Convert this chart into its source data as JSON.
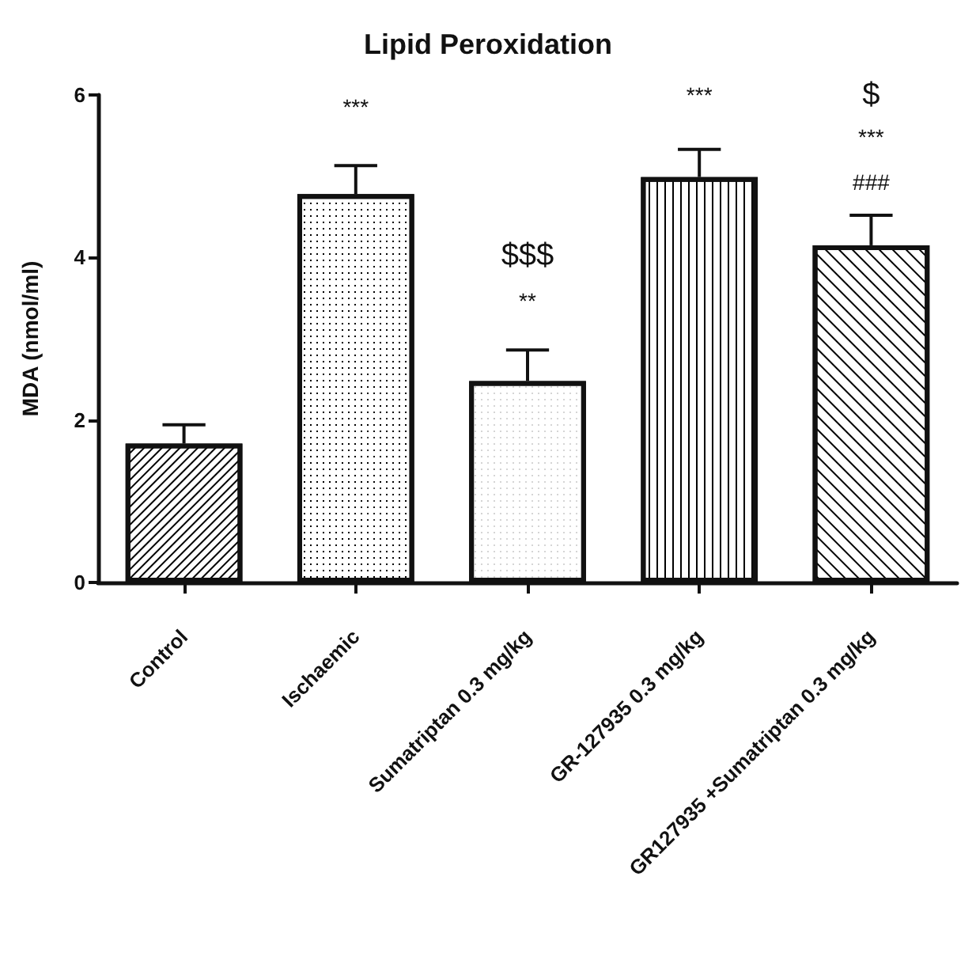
{
  "chart_data": {
    "type": "bar",
    "title": "Lipid Peroxidation",
    "ylabel": "MDA (nmol/ml)",
    "categories": [
      "Control",
      "Ischaemic",
      "Sumatriptan 0.3 mg/kg",
      "GR-127935 0.3 mg/kg",
      "GR127935 +Sumatriptan 0.3 mg/kg"
    ],
    "values": [
      1.71,
      4.78,
      2.48,
      4.99,
      4.15
    ],
    "errors": [
      0.23,
      0.35,
      0.38,
      0.34,
      0.37
    ],
    "colors": [
      "#ffffff",
      "#ffffff",
      "#ffffff",
      "#ffffff",
      "#ffffff"
    ],
    "ylim": [
      0,
      6
    ],
    "yticks": [
      0,
      2,
      4,
      6
    ],
    "grid": false,
    "annotations": [
      "***",
      "**",
      "$$$",
      "***",
      "###",
      "***",
      "$"
    ]
  }
}
